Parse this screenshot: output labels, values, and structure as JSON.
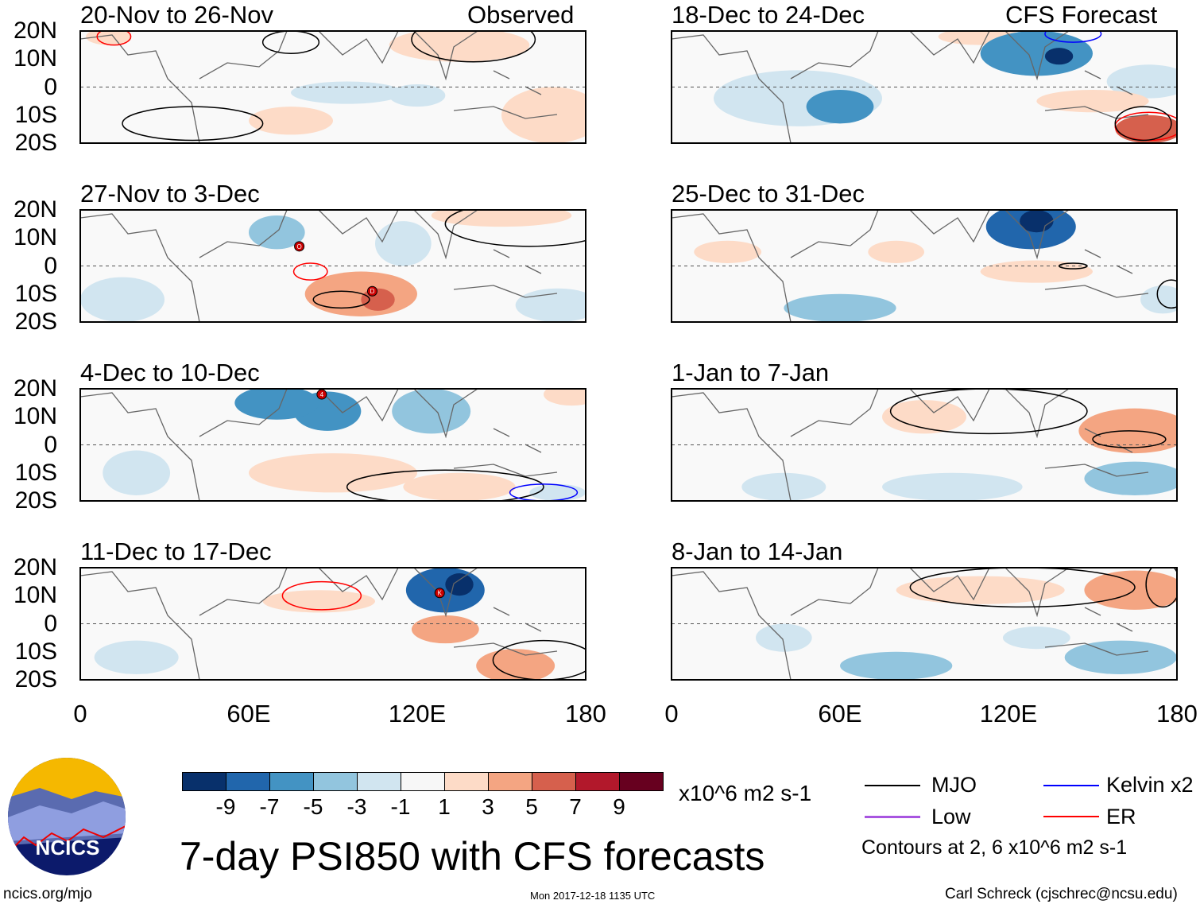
{
  "title": "7-day PSI850 with CFS forecasts",
  "labels": {
    "observed": "Observed",
    "forecast": "CFS Forecast"
  },
  "units": "x10^6 m2 s-1",
  "logo": {
    "text": "NCICS"
  },
  "footer": {
    "url": "ncics.org/mjo",
    "timestamp": "Mon 2017-12-18 1135 UTC",
    "author": "Carl Schreck (cjschrec@ncsu.edu)"
  },
  "legend": {
    "items": [
      {
        "label": "MJO",
        "color": "#000000"
      },
      {
        "label": "Low",
        "color": "#a855e0"
      },
      {
        "label": "Kelvin x2",
        "color": "#0000ff"
      },
      {
        "label": "ER",
        "color": "#ff0000"
      }
    ],
    "contours_note": "Contours at 2, 6 x10^6 m2 s-1"
  },
  "chart_data": {
    "type": "heatmap",
    "lat_ticks": [
      "20N",
      "10N",
      "0",
      "10S",
      "20S"
    ],
    "lon_ticks": [
      "0",
      "60E",
      "120E",
      "180"
    ],
    "lon_range": [
      0,
      180
    ],
    "lat_range": [
      -20,
      20
    ],
    "colorbar": {
      "levels": [
        "-9",
        "-7",
        "-5",
        "-3",
        "-1",
        "1",
        "3",
        "5",
        "7",
        "9"
      ],
      "colors": [
        "#08306b",
        "#2166ac",
        "#4393c3",
        "#92c5de",
        "#d1e5f0",
        "#f7f7f7",
        "#fddbc7",
        "#f4a582",
        "#d6604d",
        "#b2182b",
        "#67001f"
      ]
    },
    "panels": [
      {
        "title": "20-Nov to 26-Nov",
        "fields": [
          [
            135,
            15,
            25,
            6,
            2
          ],
          [
            168,
            -10,
            18,
            10,
            2
          ],
          [
            95,
            -2,
            20,
            4,
            -2
          ],
          [
            10,
            18,
            8,
            3,
            2
          ],
          [
            75,
            -12,
            15,
            5,
            2
          ],
          [
            120,
            -3,
            10,
            4,
            -2
          ]
        ],
        "contours": [
          [
            75,
            16,
            10,
            4,
            "#000"
          ],
          [
            140,
            17,
            22,
            8,
            "#000"
          ],
          [
            40,
            -13,
            25,
            6,
            "#000"
          ],
          [
            12,
            18,
            6,
            3,
            "#f00"
          ]
        ],
        "storms": []
      },
      {
        "title": "27-Nov to 3-Dec",
        "fields": [
          [
            70,
            12,
            10,
            6,
            -4
          ],
          [
            115,
            8,
            10,
            8,
            -2
          ],
          [
            170,
            -14,
            15,
            6,
            -2
          ],
          [
            100,
            -10,
            20,
            8,
            4
          ],
          [
            106,
            -12,
            6,
            4,
            7
          ],
          [
            150,
            18,
            25,
            4,
            3
          ],
          [
            15,
            -12,
            15,
            8,
            -2
          ]
        ],
        "contours": [
          [
            82,
            -2,
            6,
            3,
            "#f00"
          ],
          [
            93,
            -12,
            10,
            3,
            "#000"
          ],
          [
            160,
            15,
            30,
            8,
            "#000"
          ]
        ],
        "storms": [
          [
            78,
            7,
            "O"
          ],
          [
            104,
            -9,
            "D"
          ]
        ]
      },
      {
        "title": "4-Dec to 10-Dec",
        "fields": [
          [
            70,
            15,
            15,
            6,
            -6
          ],
          [
            88,
            12,
            12,
            7,
            -5
          ],
          [
            125,
            12,
            14,
            8,
            -4
          ],
          [
            90,
            -10,
            30,
            7,
            2
          ],
          [
            135,
            -15,
            20,
            5,
            3
          ],
          [
            175,
            18,
            10,
            4,
            3
          ],
          [
            20,
            -10,
            12,
            8,
            -2
          ],
          [
            170,
            -17,
            10,
            3,
            -2
          ]
        ],
        "contours": [
          [
            130,
            -15,
            35,
            6,
            "#000"
          ],
          [
            165,
            -17,
            12,
            3,
            "#00f"
          ]
        ],
        "storms": [
          [
            86,
            18,
            "4"
          ]
        ]
      },
      {
        "title": "11-Dec to 17-Dec",
        "fields": [
          [
            130,
            12,
            14,
            8,
            -7
          ],
          [
            135,
            14,
            5,
            4,
            -9
          ],
          [
            130,
            -2,
            12,
            5,
            4
          ],
          [
            155,
            -15,
            14,
            6,
            5
          ],
          [
            85,
            8,
            20,
            4,
            2
          ],
          [
            20,
            -12,
            15,
            6,
            -2
          ]
        ],
        "contours": [
          [
            86,
            10,
            14,
            5,
            "#f00"
          ],
          [
            165,
            -13,
            18,
            7,
            "#000"
          ]
        ],
        "storms": [
          [
            128,
            11,
            "K"
          ]
        ]
      }
    ],
    "forecast_panels": [
      {
        "title": "18-Dec to 24-Dec",
        "fields": [
          [
            130,
            12,
            20,
            8,
            -6
          ],
          [
            138,
            11,
            5,
            3,
            -9
          ],
          [
            60,
            -7,
            12,
            6,
            -5
          ],
          [
            45,
            -4,
            30,
            10,
            -2
          ],
          [
            170,
            2,
            15,
            6,
            -2
          ],
          [
            170,
            -15,
            12,
            5,
            6
          ],
          [
            110,
            18,
            15,
            3,
            2
          ],
          [
            150,
            -5,
            20,
            4,
            2
          ]
        ],
        "contours": [
          [
            170,
            -14,
            12,
            5,
            "#f00"
          ],
          [
            168,
            -13,
            10,
            6,
            "#000"
          ],
          [
            143,
            19,
            10,
            3,
            "#00f"
          ]
        ],
        "storms": []
      },
      {
        "title": "25-Dec to 31-Dec",
        "fields": [
          [
            128,
            14,
            16,
            8,
            -7
          ],
          [
            130,
            16,
            6,
            4,
            -9
          ],
          [
            60,
            -15,
            20,
            5,
            -3
          ],
          [
            20,
            5,
            12,
            4,
            2
          ],
          [
            130,
            -2,
            20,
            4,
            2
          ],
          [
            80,
            5,
            10,
            4,
            2
          ],
          [
            175,
            -12,
            8,
            5,
            -2
          ]
        ],
        "contours": [
          [
            143,
            0,
            5,
            1,
            "#000"
          ],
          [
            178,
            -10,
            5,
            5,
            "#000"
          ]
        ],
        "storms": []
      },
      {
        "title": "1-Jan to 7-Jan",
        "fields": [
          [
            165,
            5,
            20,
            8,
            4
          ],
          [
            90,
            10,
            15,
            6,
            2
          ],
          [
            165,
            -12,
            18,
            6,
            -3
          ],
          [
            100,
            -15,
            25,
            5,
            -2
          ],
          [
            40,
            -15,
            15,
            5,
            -2
          ]
        ],
        "contours": [
          [
            113,
            12,
            35,
            8,
            "#000"
          ],
          [
            163,
            2,
            13,
            3,
            "#000"
          ]
        ],
        "storms": []
      },
      {
        "title": "8-Jan to 14-Jan",
        "fields": [
          [
            165,
            12,
            18,
            7,
            4
          ],
          [
            110,
            12,
            30,
            5,
            2
          ],
          [
            160,
            -12,
            20,
            6,
            -4
          ],
          [
            80,
            -15,
            20,
            5,
            -3
          ],
          [
            130,
            -5,
            12,
            4,
            -2
          ],
          [
            40,
            -5,
            10,
            5,
            -2
          ]
        ],
        "contours": [
          [
            125,
            13,
            40,
            7,
            "#000"
          ],
          [
            175,
            14,
            6,
            8,
            "#000"
          ]
        ],
        "storms": []
      }
    ]
  }
}
